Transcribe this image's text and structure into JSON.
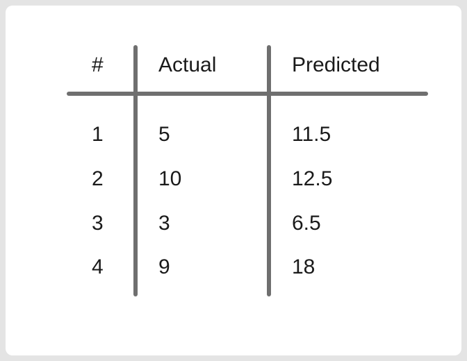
{
  "table": {
    "headers": [
      "#",
      "Actual",
      "Predicted"
    ],
    "rows": [
      [
        "1",
        "5",
        "11.5"
      ],
      [
        "2",
        "10",
        "12.5"
      ],
      [
        "3",
        "3",
        "6.5"
      ],
      [
        "4",
        "9",
        "18"
      ]
    ]
  }
}
